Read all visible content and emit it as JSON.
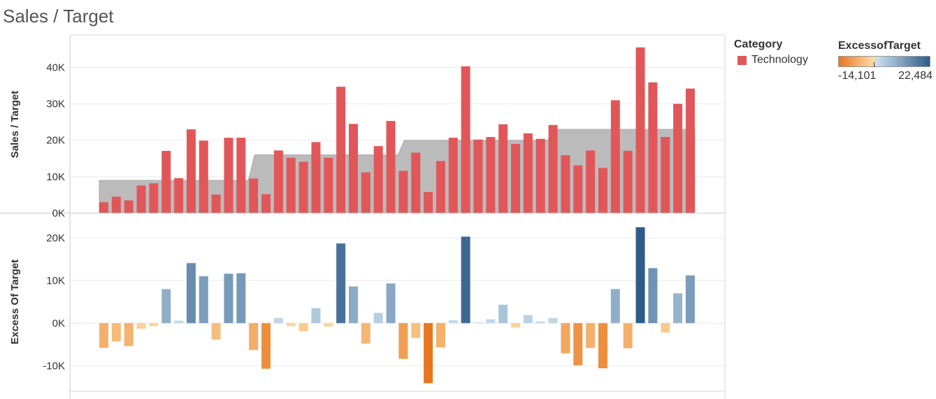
{
  "title": "Sales / Target",
  "legend_category": {
    "title": "Category",
    "items": [
      {
        "label": "Technology",
        "color": "#E15759"
      }
    ]
  },
  "legend_excess": {
    "title": "ExcessofTarget",
    "min_label": "-14,101",
    "max_label": "22,484",
    "color_min": "#E8761E",
    "color_mid_low": "#FCD9A0",
    "color_mid_high": "#C7DCEB",
    "color_max": "#2E5C8A"
  },
  "chart_data": [
    {
      "type": "bar",
      "ylabel": "Sales / Target",
      "ylim": [
        0,
        47000
      ],
      "yticks": [
        0,
        10000,
        20000,
        30000,
        40000
      ],
      "ytick_labels": [
        "0K",
        "10K",
        "20K",
        "30K",
        "40K"
      ],
      "bar_color": "#E15759",
      "target_color": "#BBBBBB",
      "series": [
        {
          "name": "Technology",
          "values": [
            3000,
            4500,
            3500,
            7600,
            8200,
            17100,
            9600,
            23000,
            19900,
            5100,
            20700,
            20700,
            9500,
            5200,
            17200,
            15200,
            14100,
            19500,
            15200,
            34700,
            24500,
            11200,
            18400,
            25300,
            11600,
            16600,
            5800,
            14300,
            20700,
            40300,
            20200,
            20900,
            24400,
            19000,
            21900,
            20400,
            24200,
            15900,
            13100,
            17200,
            12400,
            31000,
            17100,
            45500,
            35900,
            20900,
            30000,
            34200
          ]
        }
      ],
      "target_bands": [
        {
          "from_bar": 0,
          "to_bar": 11,
          "value": 9000
        },
        {
          "from_bar": 12,
          "to_bar": 23,
          "value": 16000
        },
        {
          "from_bar": 24,
          "to_bar": 35,
          "value": 20000
        },
        {
          "from_bar": 36,
          "to_bar": 47,
          "value": 23000
        }
      ]
    },
    {
      "type": "bar",
      "ylabel": "Excess Of Target",
      "ylim": [
        -16000,
        24500
      ],
      "yticks": [
        -10000,
        0,
        10000,
        20000
      ],
      "ytick_labels": [
        "-10K",
        "0K",
        "10K",
        "20K"
      ],
      "series": [
        {
          "name": "ExcessofTarget",
          "values": [
            -5800,
            -4300,
            -5400,
            -1300,
            -700,
            8000,
            600,
            14100,
            11000,
            -3900,
            11600,
            11700,
            -6300,
            -10700,
            1200,
            -700,
            -1900,
            3500,
            -800,
            18700,
            8600,
            -4800,
            2400,
            9300,
            -8400,
            -3500,
            -14100,
            -5700,
            700,
            20300,
            200,
            900,
            4300,
            -1000,
            1900,
            400,
            1200,
            -7100,
            -9900,
            -5800,
            -10600,
            8000,
            -5900,
            22500,
            12900,
            -2200,
            7000,
            11200
          ]
        }
      ]
    }
  ]
}
